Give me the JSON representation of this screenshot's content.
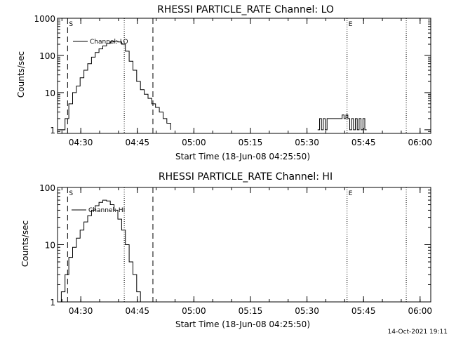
{
  "footer": {
    "timestamp": "14-Oct-2021 19:11"
  },
  "chart_data": [
    {
      "type": "line",
      "scale": "log-y",
      "title": "RHESSI PARTICLE_RATE Channel: LO",
      "xlabel": "Start Time (18-Jun-08 04:25:50)",
      "ylabel": "Counts/sec",
      "xlim": [
        -2,
        97
      ],
      "ylim": [
        0.8,
        1000
      ],
      "x_ticks": [
        4.17,
        19.17,
        34.17,
        49.17,
        64.17,
        79.17,
        94.17
      ],
      "x_tick_labels": [
        "04:30",
        "04:45",
        "05:00",
        "05:15",
        "05:30",
        "05:45",
        "06:00"
      ],
      "y_ticks": [
        1,
        10,
        100,
        1000
      ],
      "y_tick_labels": [
        "1",
        "10",
        "100",
        "1000"
      ],
      "legend": {
        "position": "top-left",
        "entries": [
          "Channel: LO"
        ]
      },
      "markers": [
        {
          "x": 0.67,
          "style": "dashed",
          "label": "S"
        },
        {
          "x": 15.7,
          "style": "dotted",
          "label": ""
        },
        {
          "x": 23.3,
          "style": "dashed",
          "label": ""
        },
        {
          "x": 74.8,
          "style": "dotted",
          "label": "E"
        },
        {
          "x": 90.5,
          "style": "dotted",
          "label": ""
        }
      ],
      "series": [
        {
          "name": "Channel: LO",
          "segments": [
            {
              "x": [
                -1.5,
                0,
                1,
                2,
                3,
                4,
                5,
                6,
                7,
                8,
                9,
                10,
                11,
                12,
                13,
                14,
                15,
                16,
                17,
                18,
                19,
                20,
                21,
                22,
                23,
                24,
                25,
                26,
                27,
                28
              ],
              "y": [
                1,
                2,
                5,
                10,
                15,
                25,
                40,
                60,
                90,
                120,
                150,
                180,
                210,
                230,
                240,
                230,
                200,
                130,
                70,
                40,
                20,
                12,
                9,
                7,
                5,
                4,
                3,
                2,
                1.5,
                1
              ]
            },
            {
              "x": [
                67,
                67.5,
                68,
                68.5,
                69,
                69.5,
                70,
                71,
                72,
                73,
                73.5,
                74,
                74.5,
                75,
                75.5,
                76,
                76.5,
                77,
                77.5,
                78,
                78.5,
                79,
                79.5,
                80
              ],
              "y": [
                1,
                2,
                1,
                2,
                1,
                2,
                2,
                2,
                2,
                2,
                2.5,
                2,
                2.5,
                2,
                1,
                2,
                1,
                2,
                1,
                2,
                1,
                2,
                1,
                1
              ]
            }
          ]
        }
      ]
    },
    {
      "type": "line",
      "scale": "log-y",
      "title": "RHESSI PARTICLE_RATE Channel: HI",
      "xlabel": "Start Time (18-Jun-08 04:25:50)",
      "ylabel": "Counts/sec",
      "xlim": [
        -2,
        97
      ],
      "ylim": [
        1,
        100
      ],
      "x_ticks": [
        4.17,
        19.17,
        34.17,
        49.17,
        64.17,
        79.17,
        94.17
      ],
      "x_tick_labels": [
        "04:30",
        "04:45",
        "05:00",
        "05:15",
        "05:30",
        "05:45",
        "06:00"
      ],
      "y_ticks": [
        1,
        10,
        100
      ],
      "y_tick_labels": [
        "1",
        "10",
        "100"
      ],
      "legend": {
        "position": "top-left",
        "entries": [
          "Channel: HI"
        ]
      },
      "markers": [
        {
          "x": 0.67,
          "style": "dashed",
          "label": "S"
        },
        {
          "x": 15.7,
          "style": "dotted",
          "label": ""
        },
        {
          "x": 23.3,
          "style": "dashed",
          "label": ""
        },
        {
          "x": 74.8,
          "style": "dotted",
          "label": "E"
        },
        {
          "x": 90.5,
          "style": "dotted",
          "label": ""
        }
      ],
      "series": [
        {
          "name": "Channel: HI",
          "segments": [
            {
              "x": [
                -1.5,
                -1,
                0,
                1,
                2,
                3,
                4,
                5,
                6,
                7,
                8,
                9,
                10,
                11,
                12,
                13,
                14,
                15,
                16,
                17,
                18,
                19,
                20
              ],
              "y": [
                1,
                1.5,
                3,
                6,
                9,
                13,
                18,
                25,
                32,
                40,
                48,
                55,
                60,
                58,
                50,
                40,
                28,
                18,
                10,
                5,
                3,
                1.5,
                1
              ]
            }
          ]
        }
      ]
    }
  ]
}
